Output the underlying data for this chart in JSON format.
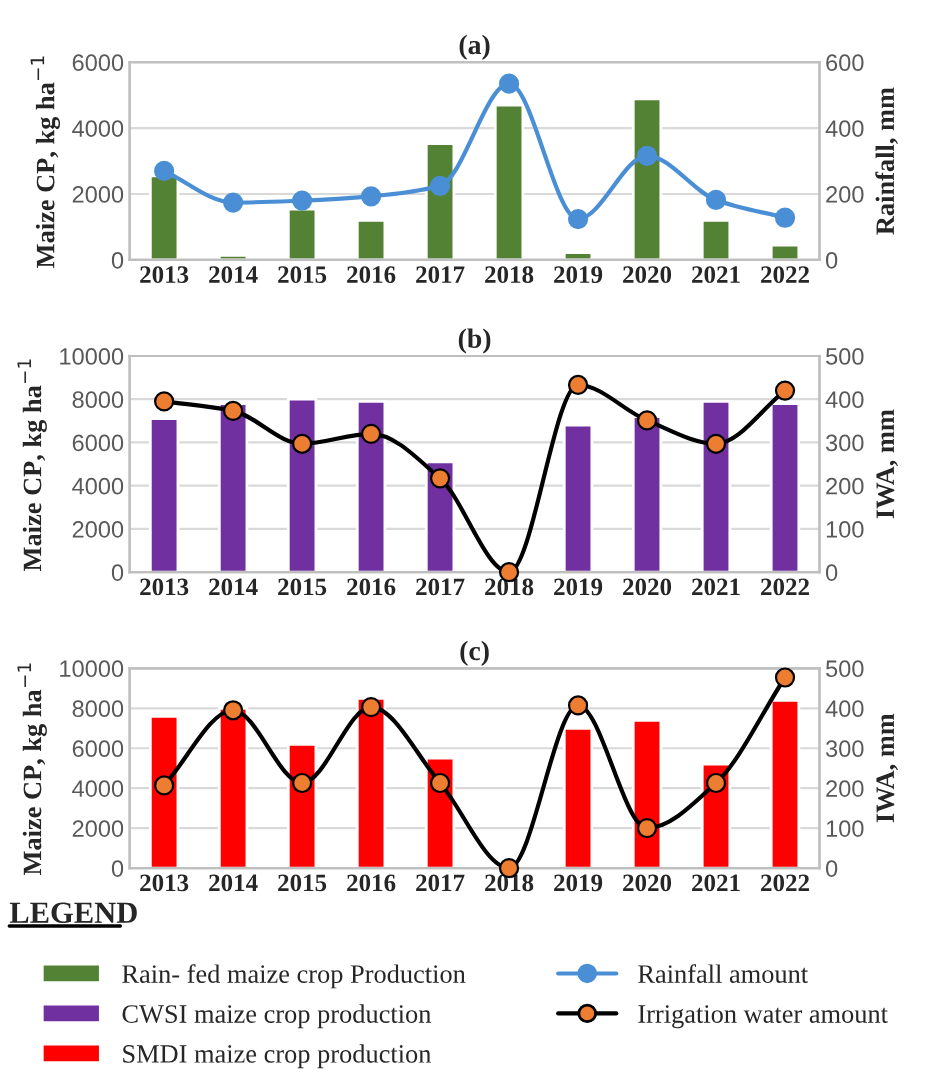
{
  "chart_data": [
    {
      "type": "bar",
      "title": "(a)",
      "ylabel": "Maize CP, kg ha$^{−1}$",
      "y2label": "Rainfall, mm",
      "categories": [
        "2013",
        "2014",
        "2015",
        "2016",
        "2017",
        "2018",
        "2019",
        "2020",
        "2021",
        "2022"
      ],
      "series": [
        {
          "name": "Rain- fed maize crop Production",
          "color": "#548235",
          "values": [
            2550,
            140,
            1540,
            1200,
            3530,
            4700,
            220,
            4890,
            1200,
            450
          ]
        },
        {
          "name": "Rainfall amount",
          "type": "line",
          "axis": "y2",
          "color": "#4a8fd6",
          "colors": [
            "#4a8fd6",
            "#4a8fd6",
            "#4a8fd6",
            "#4a8fd6",
            "#4a8fd6",
            "#4a8fd6",
            "#4a8fd6",
            "#4a8fd6",
            "#4a8fd6",
            "#4a8fd6"
          ],
          "values": [
            270,
            174,
            180,
            193,
            225,
            535,
            124,
            316,
            182,
            128
          ]
        }
      ],
      "ylim": [
        0,
        6000
      ],
      "yticks": [
        0,
        2000,
        4000,
        6000
      ],
      "y2lim": [
        0,
        600
      ],
      "y2ticks": [
        0,
        200,
        400,
        600
      ],
      "grid": "y",
      "marker": "circle",
      "legend": "bottom",
      "legend_title": "LEGEND"
    },
    {
      "type": "bar",
      "title": "(b)",
      "ylabel": "Maize CP, kg ha$^{−1}$",
      "y2label": "IWA, mm",
      "categories": [
        "2013",
        "2014",
        "2015",
        "2016",
        "2017",
        "2018",
        "2019",
        "2020",
        "2021",
        "2022"
      ],
      "series": [
        {
          "name": "CWSI maize crop production",
          "color": "#7030a0",
          "values": [
            7100,
            7800,
            8000,
            7900,
            5100,
            null,
            6800,
            7200,
            7900,
            7800
          ]
        },
        {
          "name": "Irrigation water amount",
          "type": "line",
          "axis": "y2",
          "color": "#000000",
          "colors": [
            "#ed7d31",
            "#ed7d31",
            "#ed7d31",
            "#ed7d31",
            "#ed7d31",
            "#ed7d31",
            "#ed7d31",
            "#ed7d31",
            "#ed7d31",
            "#ed7d31"
          ],
          "values": [
            395,
            373,
            297,
            320,
            217,
            0,
            433,
            351,
            297,
            420
          ]
        }
      ],
      "ylim": [
        0,
        10000
      ],
      "yticks": [
        0,
        2000,
        4000,
        6000,
        8000,
        10000
      ],
      "y2lim": [
        0,
        500
      ],
      "y2ticks": [
        0,
        100,
        200,
        300,
        400,
        500
      ],
      "grid": "y",
      "marker": "circle",
      "legend": "bottom"
    },
    {
      "type": "bar",
      "title": "(c)",
      "ylabel": "Maize CP, kg ha$^{−1}$",
      "y2label": "IWA, mm",
      "categories": [
        "2013",
        "2014",
        "2015",
        "2016",
        "2017",
        "2018",
        "2019",
        "2020",
        "2021",
        "2022"
      ],
      "series": [
        {
          "name": "SMDI maize crop production",
          "color": "#ff0000",
          "values": [
            7600,
            8000,
            6200,
            8500,
            5500,
            null,
            7000,
            7400,
            5200,
            8400
          ]
        },
        {
          "type": "line",
          "axis": "y2",
          "color": "#000000",
          "colors": [
            "#ed7d31",
            "#ed7d31",
            "#ed7d31",
            "#ed7d31",
            "#ed7d31",
            "#ed7d31",
            "#ed7d31",
            "#ed7d31",
            "#ed7d31",
            "#ed7d31"
          ],
          "values": [
            207,
            395,
            213,
            403,
            213,
            0,
            407,
            100,
            213,
            477
          ]
        }
      ],
      "ylim": [
        0,
        10000
      ],
      "yticks": [
        0,
        2000,
        4000,
        6000,
        8000,
        10000
      ],
      "y2lim": [
        0,
        500
      ],
      "y2ticks": [
        0,
        100,
        200,
        300,
        400,
        500
      ],
      "grid": "y",
      "marker": "circle",
      "legend": "bottom"
    }
  ]
}
